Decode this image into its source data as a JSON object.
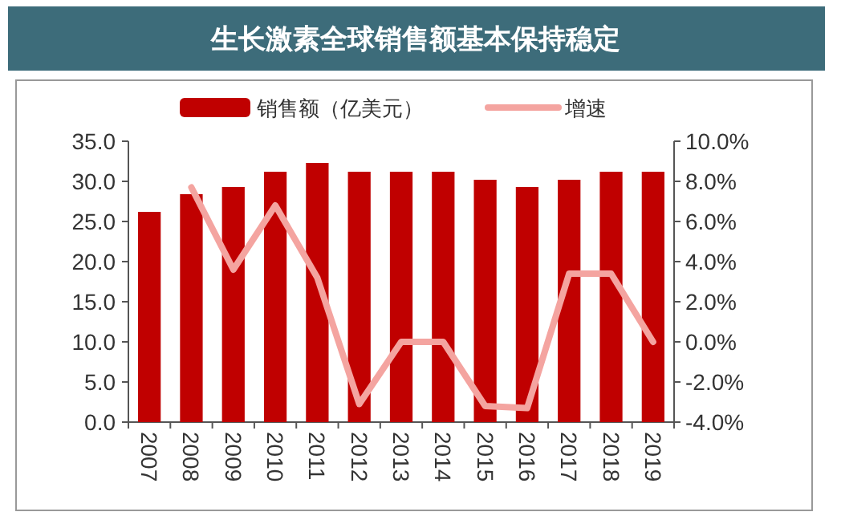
{
  "chart_data": {
    "type": "bar",
    "title": "生长激素全球销售额基本保持稳定",
    "categories": [
      "2007",
      "2008",
      "2009",
      "2010",
      "2011",
      "2012",
      "2013",
      "2014",
      "2015",
      "2016",
      "2017",
      "2018",
      "2019"
    ],
    "series": [
      {
        "name": "销售额（亿美元）",
        "color": "#c00000",
        "values": [
          26.2,
          28.4,
          29.3,
          31.2,
          32.3,
          31.2,
          31.2,
          31.2,
          30.2,
          29.3,
          30.2,
          31.2,
          31.2
        ]
      },
      {
        "name": "增速",
        "type": "line",
        "axis": "y2",
        "color": "#f4a4a0",
        "values": [
          null,
          7.7,
          3.6,
          6.8,
          3.2,
          -3.1,
          0.0,
          0.0,
          -3.2,
          -3.3,
          3.4,
          3.4,
          0.0
        ]
      }
    ],
    "ylim": [
      0,
      35
    ],
    "yticks": [
      {
        "value": 0,
        "label": "0.0"
      },
      {
        "value": 5,
        "label": "5.0"
      },
      {
        "value": 10,
        "label": "10.0"
      },
      {
        "value": 15,
        "label": "15.0"
      },
      {
        "value": 20,
        "label": "20.0"
      },
      {
        "value": 25,
        "label": "25.0"
      },
      {
        "value": 30,
        "label": "30.0"
      },
      {
        "value": 35,
        "label": "35.0"
      }
    ],
    "y2lim": [
      -4,
      10
    ],
    "y2ticks": [
      {
        "value": -4,
        "label": "-4.0%"
      },
      {
        "value": -2,
        "label": "-2.0%"
      },
      {
        "value": 0,
        "label": "0.0%"
      },
      {
        "value": 2,
        "label": "2.0%"
      },
      {
        "value": 4,
        "label": "4.0%"
      },
      {
        "value": 6,
        "label": "6.0%"
      },
      {
        "value": 8,
        "label": "8.0%"
      },
      {
        "value": 10,
        "label": "10.0%"
      }
    ],
    "legend": "top",
    "grid": false
  }
}
